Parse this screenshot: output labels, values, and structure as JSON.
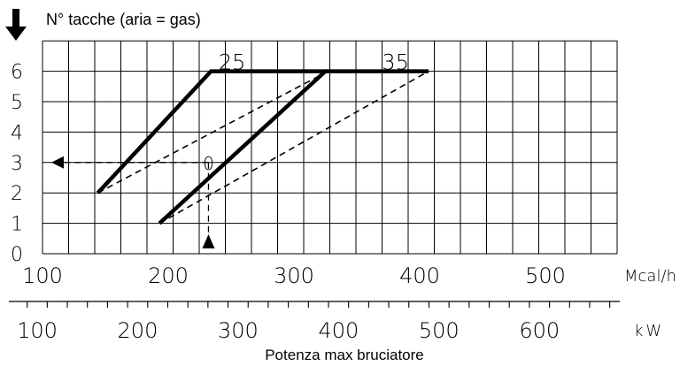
{
  "chart_data": {
    "type": "line",
    "title": "N° tacche (aria = gas)",
    "xlabel": "Potenza max bruciatore",
    "y_ticks": [
      "0",
      "1",
      "2",
      "3",
      "4",
      "5",
      "6"
    ],
    "ylim": [
      0,
      7
    ],
    "axis_mcal": {
      "unit": "Mcal/h",
      "range": [
        100,
        557
      ],
      "ticks": [
        {
          "value": 100,
          "label": "100"
        },
        {
          "value": 200,
          "label": "200"
        },
        {
          "value": 300,
          "label": "300"
        },
        {
          "value": 400,
          "label": "400"
        },
        {
          "value": 500,
          "label": "500"
        }
      ]
    },
    "axis_kw": {
      "unit": "kW",
      "range": [
        100,
        680
      ],
      "ticks": [
        {
          "value": 100,
          "label": "100"
        },
        {
          "value": 200,
          "label": "200"
        },
        {
          "value": 300,
          "label": "300"
        },
        {
          "value": 400,
          "label": "400"
        },
        {
          "value": 500,
          "label": "500"
        },
        {
          "value": 600,
          "label": "600"
        }
      ]
    },
    "series": [
      {
        "name": "25",
        "style": "solid",
        "points": [
          [
            144,
            2
          ],
          [
            234,
            6
          ],
          [
            327,
            6
          ]
        ],
        "label_at": [
          240,
          6
        ]
      },
      {
        "name": "35",
        "style": "solid",
        "points": [
          [
            193,
            1
          ],
          [
            325,
            6
          ],
          [
            407,
            6
          ]
        ],
        "label_at": [
          370,
          6
        ]
      },
      {
        "name": "",
        "style": "dashed",
        "points": [
          [
            144,
            2
          ],
          [
            327,
            6
          ]
        ]
      },
      {
        "name": "",
        "style": "dashed",
        "points": [
          [
            193,
            1
          ],
          [
            407,
            6
          ]
        ]
      }
    ],
    "example": {
      "point": [
        232,
        3
      ],
      "marker_label": "0",
      "x_arrow_from": 0.1,
      "y_arrow_to": 113
    },
    "colors": {
      "line": "#000000",
      "grid": "#000000",
      "background": "#ffffff"
    }
  }
}
